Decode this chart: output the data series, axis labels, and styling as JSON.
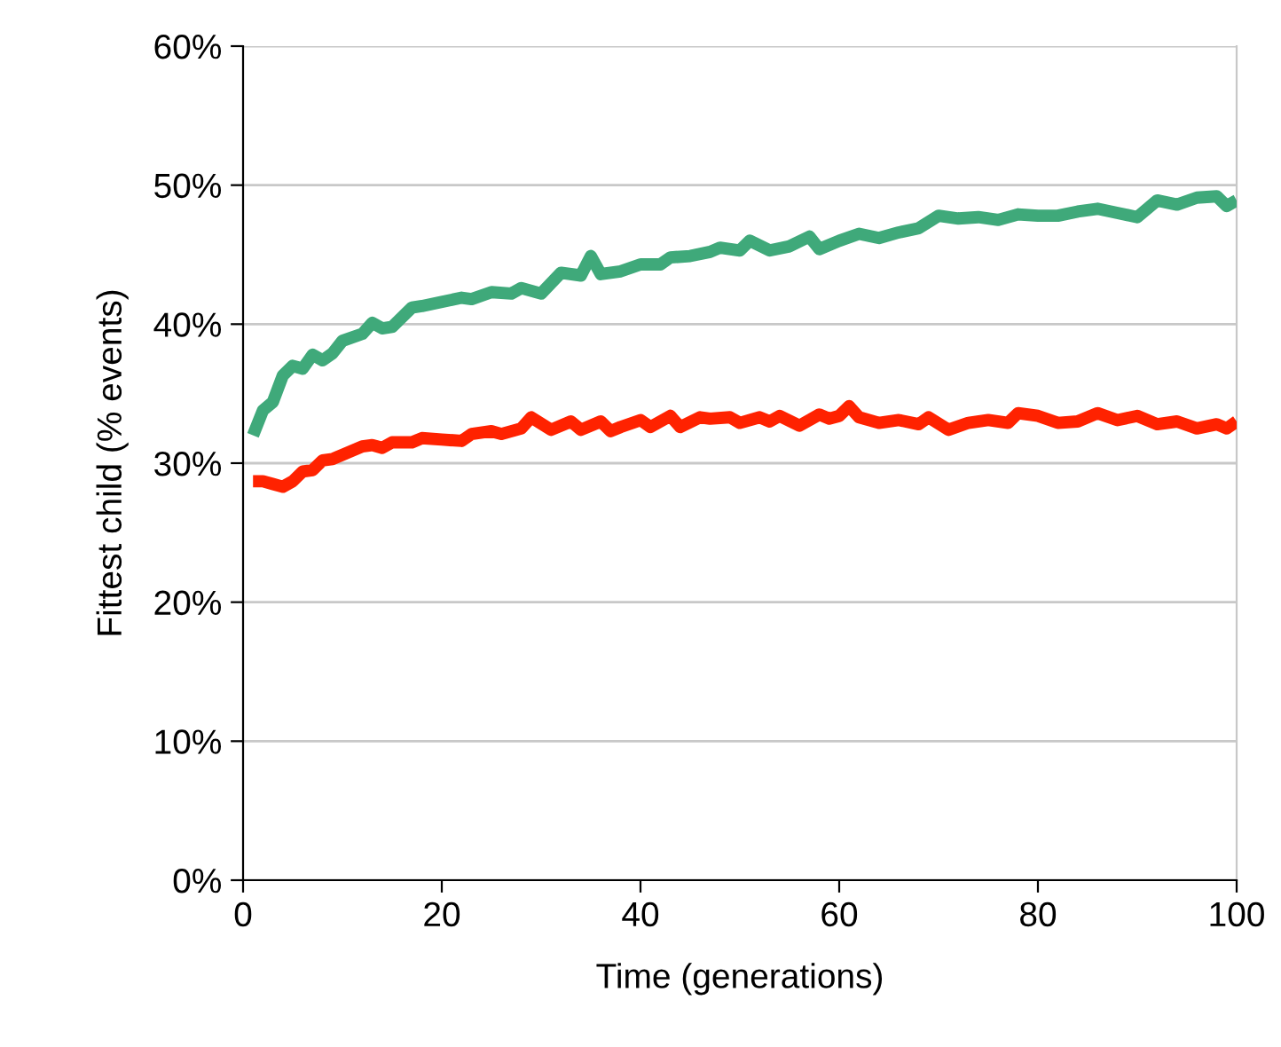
{
  "chart_data": {
    "type": "line",
    "xlabel": "Time (generations)",
    "ylabel": "Fittest child (% events)",
    "xlim": [
      0,
      100
    ],
    "xticks": [
      0,
      20,
      40,
      60,
      80,
      100
    ],
    "ylim": [
      0,
      60
    ],
    "yticks": [
      {
        "value": 0,
        "label": "0%"
      },
      {
        "value": 10,
        "label": "10%"
      },
      {
        "value": 20,
        "label": "20%"
      },
      {
        "value": 30,
        "label": "30%"
      },
      {
        "value": 40,
        "label": "40%"
      },
      {
        "value": 50,
        "label": "50%"
      },
      {
        "value": 60,
        "label": "60%"
      }
    ],
    "grid": "y",
    "legend": false,
    "marker": "none",
    "line_style": "solid",
    "series": [
      {
        "color": "#3fa97a",
        "x": [
          1,
          2,
          3,
          4,
          5,
          6,
          7,
          8,
          9,
          10,
          12,
          13,
          14,
          15,
          17,
          18,
          20,
          22,
          23,
          25,
          27,
          28,
          30,
          32,
          34,
          35,
          36,
          38,
          40,
          42,
          43,
          45,
          47,
          48,
          50,
          51,
          53,
          55,
          57,
          58,
          60,
          62,
          64,
          66,
          68,
          70,
          72,
          74,
          76,
          78,
          80,
          82,
          84,
          86,
          88,
          90,
          92,
          94,
          96,
          98,
          99,
          100
        ],
        "values": [
          32,
          33.8,
          34.4,
          36.3,
          37,
          36.8,
          37.8,
          37.4,
          37.9,
          38.8,
          39.3,
          40.1,
          39.7,
          39.8,
          41.2,
          41.3,
          41.6,
          41.9,
          41.8,
          42.3,
          42.2,
          42.6,
          42.2,
          43.7,
          43.5,
          44.9,
          43.6,
          43.8,
          44.3,
          44.3,
          44.8,
          44.9,
          45.2,
          45.5,
          45.3,
          46,
          45.3,
          45.6,
          46.3,
          45.4,
          46,
          46.5,
          46.2,
          46.6,
          46.9,
          47.8,
          47.6,
          47.7,
          47.5,
          47.9,
          47.8,
          47.8,
          48.1,
          48.3,
          48,
          47.7,
          48.9,
          48.6,
          49.1,
          49.2,
          48.5,
          48.9
        ]
      },
      {
        "color": "#ff2200",
        "x": [
          1,
          2,
          3,
          4,
          5,
          6,
          7,
          8,
          9,
          10,
          12,
          13,
          14,
          15,
          17,
          18,
          20,
          22,
          23,
          25,
          26,
          28,
          29,
          31,
          33,
          34,
          36,
          37,
          38,
          40,
          41,
          43,
          44,
          46,
          47,
          49,
          50,
          52,
          53,
          54,
          56,
          58,
          59,
          60,
          61,
          62,
          64,
          66,
          68,
          69,
          71,
          73,
          75,
          77,
          78,
          80,
          82,
          84,
          86,
          88,
          90,
          92,
          94,
          96,
          98,
          99,
          100
        ],
        "values": [
          28.7,
          28.7,
          28.5,
          28.3,
          28.7,
          29.4,
          29.5,
          30.2,
          30.3,
          30.6,
          31.2,
          31.3,
          31.1,
          31.5,
          31.5,
          31.8,
          31.7,
          31.6,
          32.1,
          32.3,
          32.1,
          32.5,
          33.3,
          32.4,
          33,
          32.4,
          33,
          32.3,
          32.6,
          33.1,
          32.6,
          33.4,
          32.6,
          33.3,
          33.2,
          33.3,
          32.9,
          33.3,
          33,
          33.4,
          32.7,
          33.5,
          33.2,
          33.4,
          34.1,
          33.3,
          32.9,
          33.1,
          32.8,
          33.3,
          32.4,
          32.9,
          33.1,
          32.9,
          33.6,
          33.4,
          32.9,
          33,
          33.6,
          33.1,
          33.4,
          32.8,
          33,
          32.5,
          32.8,
          32.5,
          33
        ]
      }
    ]
  }
}
